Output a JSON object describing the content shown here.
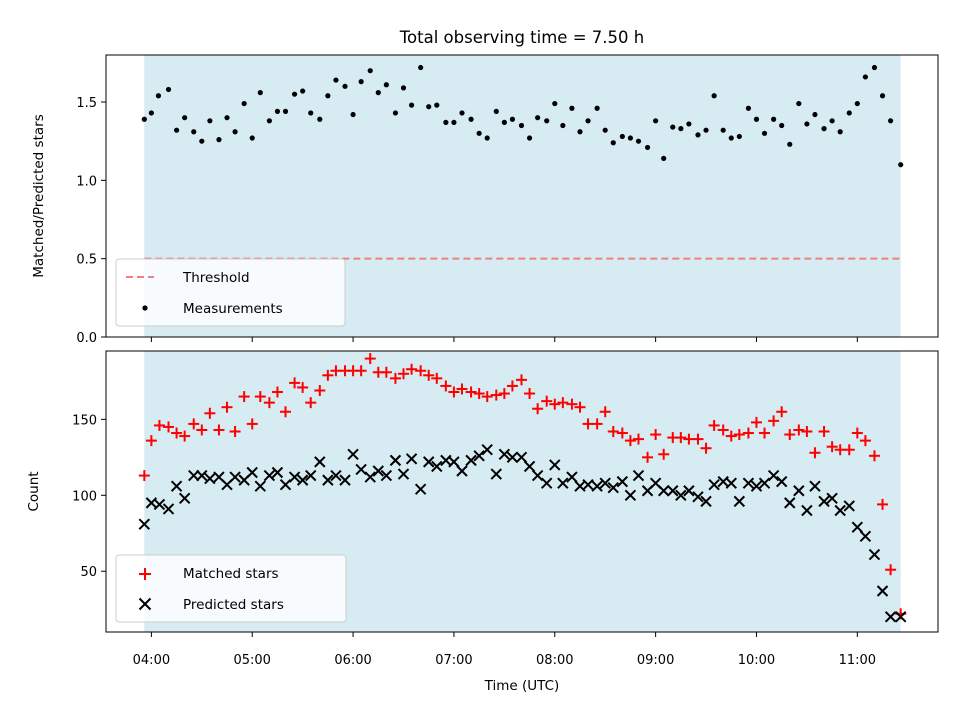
{
  "title": "Total observing time = 7.50 h",
  "colors": {
    "span_fill": "#add8e6",
    "threshold": "#f08080",
    "measurement": "#000000",
    "matched": "#ff0000",
    "predicted": "#000000"
  },
  "chart_data": [
    {
      "type": "scatter",
      "ylabel": "Matched/Predicted stars",
      "ylim": [
        0,
        1.8
      ],
      "yticks": [
        0.0,
        0.5,
        1.0,
        1.5
      ],
      "ytick_labels": [
        "0.0",
        "0.5",
        "1.0",
        "1.5"
      ],
      "xlim_hours": [
        3.55,
        11.8
      ],
      "observing_span_hours": [
        3.93,
        11.43
      ],
      "threshold": 0.5,
      "legend": {
        "position": "lower-left",
        "entries": [
          "Threshold",
          "Measurements"
        ]
      },
      "series": [
        {
          "name": "Measurements",
          "x_hours": [
            3.93,
            4.0,
            4.07,
            4.17,
            4.25,
            4.33,
            4.42,
            4.5,
            4.58,
            4.67,
            4.75,
            4.83,
            4.92,
            5.0,
            5.08,
            5.17,
            5.25,
            5.33,
            5.42,
            5.5,
            5.58,
            5.67,
            5.75,
            5.83,
            5.92,
            6.0,
            6.08,
            6.17,
            6.25,
            6.33,
            6.42,
            6.5,
            6.58,
            6.67,
            6.75,
            6.83,
            6.92,
            7.0,
            7.08,
            7.17,
            7.25,
            7.33,
            7.42,
            7.5,
            7.58,
            7.67,
            7.75,
            7.83,
            7.92,
            8.0,
            8.08,
            8.17,
            8.25,
            8.33,
            8.42,
            8.5,
            8.58,
            8.67,
            8.75,
            8.83,
            8.92,
            9.0,
            9.08,
            9.17,
            9.25,
            9.33,
            9.42,
            9.5,
            9.58,
            9.67,
            9.75,
            9.83,
            9.92,
            10.0,
            10.08,
            10.17,
            10.25,
            10.33,
            10.42,
            10.5,
            10.58,
            10.67,
            10.75,
            10.83,
            10.92,
            11.0,
            11.08,
            11.17,
            11.25,
            11.33,
            11.43
          ],
          "values": [
            1.39,
            1.43,
            1.54,
            1.58,
            1.32,
            1.4,
            1.31,
            1.25,
            1.38,
            1.26,
            1.4,
            1.31,
            1.49,
            1.27,
            1.56,
            1.38,
            1.44,
            1.44,
            1.55,
            1.57,
            1.43,
            1.39,
            1.54,
            1.64,
            1.6,
            1.42,
            1.63,
            1.7,
            1.56,
            1.61,
            1.43,
            1.59,
            1.48,
            1.72,
            1.47,
            1.48,
            1.37,
            1.37,
            1.43,
            1.39,
            1.3,
            1.27,
            1.44,
            1.37,
            1.39,
            1.35,
            1.27,
            1.4,
            1.38,
            1.49,
            1.35,
            1.46,
            1.31,
            1.38,
            1.46,
            1.32,
            1.24,
            1.28,
            1.27,
            1.25,
            1.21,
            1.38,
            1.14,
            1.34,
            1.33,
            1.36,
            1.29,
            1.32,
            1.54,
            1.32,
            1.27,
            1.28,
            1.46,
            1.39,
            1.3,
            1.39,
            1.35,
            1.23,
            1.49,
            1.36,
            1.42,
            1.33,
            1.38,
            1.31,
            1.43,
            1.49,
            1.66,
            1.72,
            1.54,
            1.38,
            1.1
          ]
        }
      ]
    },
    {
      "type": "scatter",
      "xlabel": "Time (UTC)",
      "ylabel": "Count",
      "ylim": [
        10,
        195
      ],
      "yticks": [
        50,
        100,
        150
      ],
      "ytick_labels": [
        "50",
        "100",
        "150"
      ],
      "xlim_hours": [
        3.55,
        11.8
      ],
      "xticks_hours": [
        4,
        5,
        6,
        7,
        8,
        9,
        10,
        11
      ],
      "xtick_labels": [
        "04:00",
        "05:00",
        "06:00",
        "07:00",
        "08:00",
        "09:00",
        "10:00",
        "11:00"
      ],
      "observing_span_hours": [
        3.93,
        11.43
      ],
      "legend": {
        "position": "lower-left",
        "entries": [
          "Matched stars",
          "Predicted stars"
        ]
      },
      "series": [
        {
          "name": "Matched stars",
          "marker": "plus",
          "x_hours": [
            3.93,
            4.0,
            4.08,
            4.17,
            4.25,
            4.33,
            4.42,
            4.5,
            4.58,
            4.67,
            4.75,
            4.83,
            4.92,
            5.0,
            5.08,
            5.17,
            5.25,
            5.33,
            5.42,
            5.5,
            5.58,
            5.67,
            5.75,
            5.83,
            5.92,
            6.0,
            6.08,
            6.17,
            6.25,
            6.33,
            6.42,
            6.5,
            6.58,
            6.67,
            6.75,
            6.83,
            6.92,
            7.0,
            7.08,
            7.17,
            7.25,
            7.33,
            7.42,
            7.5,
            7.58,
            7.67,
            7.75,
            7.83,
            7.92,
            8.0,
            8.08,
            8.17,
            8.25,
            8.33,
            8.42,
            8.5,
            8.58,
            8.67,
            8.75,
            8.83,
            8.92,
            9.0,
            9.08,
            9.17,
            9.25,
            9.33,
            9.42,
            9.5,
            9.58,
            9.67,
            9.75,
            9.83,
            9.92,
            10.0,
            10.08,
            10.17,
            10.25,
            10.33,
            10.42,
            10.5,
            10.58,
            10.67,
            10.75,
            10.83,
            10.92,
            11.0,
            11.08,
            11.17,
            11.25,
            11.33,
            11.43
          ],
          "values": [
            113,
            136,
            146,
            145,
            141,
            139,
            147,
            143,
            154,
            143,
            158,
            142,
            165,
            147,
            165,
            161,
            168,
            155,
            174,
            171,
            161,
            169,
            179,
            182,
            182,
            182,
            182,
            190,
            181,
            181,
            177,
            180,
            183,
            182,
            179,
            177,
            172,
            168,
            170,
            168,
            167,
            165,
            166,
            167,
            172,
            176,
            167,
            157,
            162,
            160,
            161,
            160,
            158,
            147,
            147,
            155,
            142,
            141,
            136,
            137,
            125,
            140,
            127,
            138,
            138,
            137,
            137,
            131,
            146,
            143,
            139,
            140,
            141,
            148,
            141,
            149,
            155,
            140,
            143,
            142,
            128,
            142,
            132,
            130,
            130,
            141,
            136,
            126,
            94,
            51,
            22
          ],
          "note": ""
        },
        {
          "name": "Predicted stars",
          "marker": "x",
          "x_hours": [
            3.93,
            4.0,
            4.08,
            4.17,
            4.25,
            4.33,
            4.42,
            4.5,
            4.58,
            4.67,
            4.75,
            4.83,
            4.92,
            5.0,
            5.08,
            5.17,
            5.25,
            5.33,
            5.42,
            5.5,
            5.58,
            5.67,
            5.75,
            5.83,
            5.92,
            6.0,
            6.08,
            6.17,
            6.25,
            6.33,
            6.42,
            6.5,
            6.58,
            6.67,
            6.75,
            6.83,
            6.92,
            7.0,
            7.08,
            7.17,
            7.25,
            7.33,
            7.42,
            7.5,
            7.58,
            7.67,
            7.75,
            7.83,
            7.92,
            8.0,
            8.08,
            8.17,
            8.25,
            8.33,
            8.42,
            8.5,
            8.58,
            8.67,
            8.75,
            8.83,
            8.92,
            9.0,
            9.08,
            9.17,
            9.25,
            9.33,
            9.42,
            9.5,
            9.58,
            9.67,
            9.75,
            9.83,
            9.92,
            10.0,
            10.08,
            10.17,
            10.25,
            10.33,
            10.42,
            10.5,
            10.58,
            10.67,
            10.75,
            10.83,
            10.92,
            11.0,
            11.08,
            11.17,
            11.25,
            11.33,
            11.43
          ],
          "values": [
            81,
            95,
            94,
            91,
            106,
            98,
            113,
            113,
            111,
            112,
            107,
            112,
            110,
            115,
            106,
            113,
            115,
            107,
            112,
            110,
            113,
            122,
            110,
            113,
            110,
            127,
            117,
            112,
            116,
            113,
            123,
            114,
            124,
            104,
            122,
            119,
            123,
            122,
            116,
            123,
            126,
            130,
            114,
            127,
            125,
            125,
            119,
            113,
            108,
            120,
            108,
            112,
            106,
            107,
            106,
            108,
            105,
            109,
            100,
            113,
            103,
            108,
            103,
            103,
            100,
            103,
            99,
            96,
            107,
            109,
            108,
            96,
            108,
            106,
            108,
            113,
            109,
            95,
            103,
            90,
            106,
            96,
            98,
            90,
            93,
            79,
            73,
            61,
            37,
            20,
            20
          ],
          "note": ""
        }
      ]
    }
  ]
}
